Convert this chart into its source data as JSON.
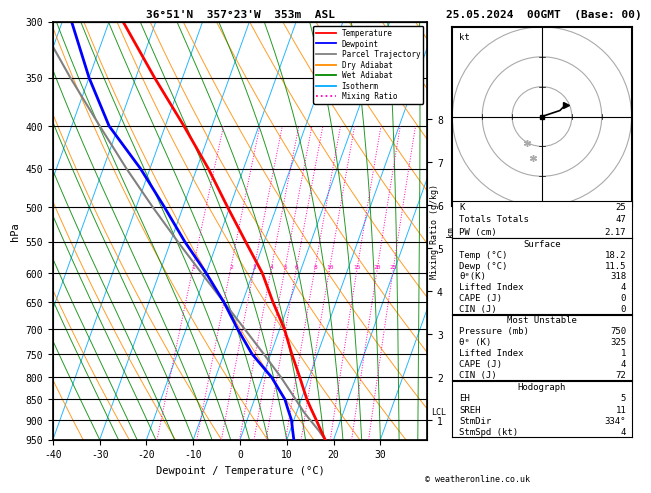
{
  "title_left": "36°51'N  357°23'W  353m  ASL",
  "title_right": "25.05.2024  00GMT  (Base: 00)",
  "xlabel": "Dewpoint / Temperature (°C)",
  "pressure_levels": [
    300,
    350,
    400,
    450,
    500,
    550,
    600,
    650,
    700,
    750,
    800,
    850,
    900,
    950
  ],
  "temp_axis_labels": [
    -40,
    -30,
    -20,
    -10,
    0,
    10,
    20,
    30
  ],
  "km_ticks": [
    1,
    2,
    3,
    4,
    5,
    6,
    7,
    8
  ],
  "mixing_ratio_vals": [
    1,
    2,
    3,
    4,
    5,
    6,
    8,
    10,
    15,
    20,
    25
  ],
  "lcl_pressure": 880,
  "temperature_profile": {
    "pressure": [
      950,
      925,
      900,
      875,
      850,
      800,
      750,
      700,
      650,
      600,
      550,
      500,
      450,
      400,
      350,
      300
    ],
    "temp": [
      18.2,
      16.5,
      14.8,
      13.0,
      11.2,
      8.0,
      4.5,
      1.0,
      -3.5,
      -8.0,
      -14.0,
      -20.5,
      -27.5,
      -36.0,
      -46.0,
      -57.0
    ]
  },
  "dewpoint_profile": {
    "pressure": [
      950,
      925,
      900,
      875,
      850,
      800,
      750,
      700,
      650,
      600,
      550,
      500,
      450,
      400,
      350,
      300
    ],
    "temp": [
      11.5,
      10.5,
      9.5,
      8.0,
      6.5,
      2.0,
      -4.0,
      -9.0,
      -14.0,
      -20.0,
      -27.0,
      -34.0,
      -42.0,
      -52.0,
      -60.0,
      -68.0
    ]
  },
  "parcel_profile": {
    "pressure": [
      950,
      925,
      900,
      880,
      850,
      800,
      750,
      700,
      650,
      600,
      550,
      500,
      450,
      400,
      350,
      300
    ],
    "temp": [
      18.2,
      16.0,
      13.5,
      11.5,
      8.8,
      4.0,
      -1.5,
      -7.5,
      -14.0,
      -21.0,
      -28.5,
      -36.5,
      -45.0,
      -54.0,
      -64.0,
      -75.0
    ]
  },
  "colors": {
    "temperature": "#ff0000",
    "dewpoint": "#0000ff",
    "parcel": "#808080",
    "dry_adiabat": "#ff8c00",
    "wet_adiabat": "#008800",
    "isotherm": "#00aaff",
    "mixing_ratio": "#ff00bb",
    "background": "#ffffff",
    "grid": "#000000"
  },
  "legend_items": [
    {
      "label": "Temperature",
      "color": "#ff0000",
      "style": "solid"
    },
    {
      "label": "Dewpoint",
      "color": "#0000ff",
      "style": "solid"
    },
    {
      "label": "Parcel Trajectory",
      "color": "#808080",
      "style": "solid"
    },
    {
      "label": "Dry Adiabat",
      "color": "#ff8c00",
      "style": "solid"
    },
    {
      "label": "Wet Adiabat",
      "color": "#008800",
      "style": "solid"
    },
    {
      "label": "Isotherm",
      "color": "#00aaff",
      "style": "solid"
    },
    {
      "label": "Mixing Ratio",
      "color": "#ff00bb",
      "style": "dotted"
    }
  ],
  "stats": {
    "K": 25,
    "Totals Totals": 47,
    "PW (cm)": "2.17",
    "Surface": {
      "Temp": "18.2",
      "Dewp": "11.5",
      "the_K": 318,
      "Lifted Index": 4,
      "CAPE_J": 0,
      "CIN_J": 0
    },
    "MostUnstable": {
      "Pressure_mb": 750,
      "the_K": 325,
      "Lifted Index": 1,
      "CAPE_J": 4,
      "CIN_J": 72
    },
    "Hodograph": {
      "EH": 5,
      "SREH": 11,
      "StmDir": "334°",
      "StmSpd": 4
    }
  }
}
